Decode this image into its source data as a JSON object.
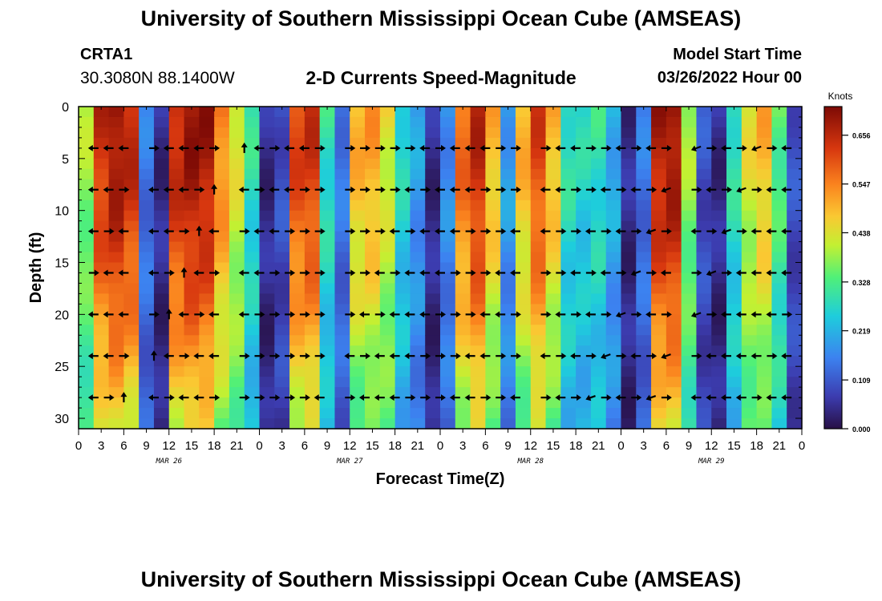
{
  "header": {
    "top_title": "University of Southern Mississippi Ocean Cube (AMSEAS)",
    "station_id": "CRTA1",
    "station_coords": "30.3080N  88.1400W",
    "plot_title": "2-D Currents Speed-Magnitude",
    "model_start_label": "Model Start Time",
    "model_start_value": "03/26/2022 Hour 00"
  },
  "footer": {
    "bottom_title": "University of Southern Mississippi Ocean Cube (AMSEAS)"
  },
  "chart_data": {
    "type": "heatmap",
    "title": "2-D Currents Speed-Magnitude",
    "xlabel": "Forecast Time(Z)",
    "ylabel": "Depth (ft)",
    "x_range_hours": [
      0,
      96
    ],
    "y_range_ft": [
      0,
      31
    ],
    "x_tick_labels": [
      "0",
      "3",
      "6",
      "9",
      "12",
      "15",
      "18",
      "21",
      "0",
      "3",
      "6",
      "9",
      "12",
      "15",
      "18",
      "21",
      "0",
      "3",
      "6",
      "9",
      "12",
      "15",
      "18",
      "21",
      "0",
      "3",
      "6",
      "9",
      "12",
      "15",
      "18",
      "21",
      "0"
    ],
    "date_labels": [
      "MAR 26",
      "MAR 27",
      "MAR 28",
      "MAR 29"
    ],
    "y_ticks": [
      0,
      5,
      10,
      15,
      20,
      25,
      30
    ],
    "colorbar": {
      "unit_label": "Knots",
      "ticks": [
        "0.656",
        "0.547",
        "0.438",
        "0.328",
        "0.219",
        "0.109",
        "0.000"
      ],
      "tick_values": [
        0.656,
        0.547,
        0.438,
        0.328,
        0.219,
        0.109,
        0.0
      ],
      "vmin": 0.0,
      "vmax": 0.72
    },
    "speed_profile_knots": [
      0.4,
      0.65,
      0.7,
      0.66,
      0.15,
      0.05,
      0.66,
      0.7,
      0.69,
      0.55,
      0.45,
      0.3,
      0.05,
      0.1,
      0.62,
      0.64,
      0.3,
      0.15,
      0.5,
      0.52,
      0.45,
      0.28,
      0.2,
      0.05,
      0.18,
      0.58,
      0.66,
      0.5,
      0.2,
      0.5,
      0.62,
      0.5,
      0.3,
      0.28,
      0.3,
      0.22,
      0.05,
      0.15,
      0.68,
      0.7,
      0.4,
      0.1,
      0.05,
      0.3,
      0.45,
      0.5,
      0.35,
      0.1
    ],
    "arrow_depths_ft": [
      4,
      8,
      12,
      16,
      20,
      24,
      28
    ],
    "arrow_times_hours": [
      2,
      4,
      6,
      10,
      12,
      14,
      16,
      18,
      22,
      24,
      26,
      28,
      30,
      32,
      36,
      38,
      40,
      42,
      44,
      46,
      48,
      50,
      52,
      54,
      56,
      58,
      62,
      64,
      66,
      68,
      70,
      72,
      74,
      76,
      78,
      82,
      84,
      86,
      88,
      90,
      92,
      94
    ],
    "arrow_directions_deg": [
      180,
      180,
      180,
      0,
      180,
      180,
      180,
      0,
      90,
      180,
      0,
      180,
      180,
      0,
      0,
      0,
      0,
      0,
      0,
      180,
      0,
      180,
      180,
      180,
      0,
      0,
      0,
      180,
      180,
      0,
      0,
      180,
      0,
      180,
      0,
      200,
      0,
      180,
      0,
      200,
      0,
      180
    ]
  }
}
